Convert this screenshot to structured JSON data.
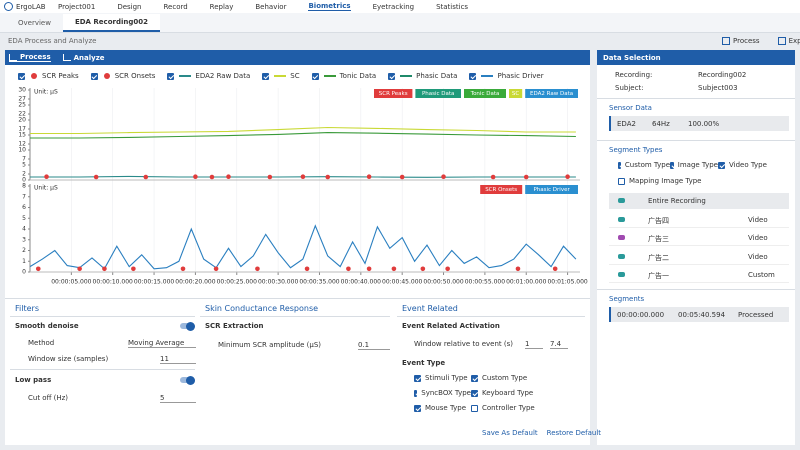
{
  "menu": {
    "app": "ErgoLAB",
    "items": [
      "Project001",
      "Design",
      "Record",
      "Replay",
      "Behavior",
      "Biometrics",
      "Eyetracking",
      "Statistics"
    ],
    "active_index": 5
  },
  "tabs": {
    "items": [
      "Overview",
      "EDA Recording002"
    ],
    "active_index": 1
  },
  "toolbar": {
    "title": "EDA Process and Analyze",
    "actions": [
      "Process",
      "Export"
    ]
  },
  "panel_tabs": {
    "items": [
      "Process",
      "Analyze"
    ],
    "active_index": 0
  },
  "legend": [
    {
      "label": "SCR Peaks",
      "color": "#e03c3c",
      "marker": "dot"
    },
    {
      "label": "SCR Onsets",
      "color": "#e03c3c",
      "marker": "dot"
    },
    {
      "label": "EDA2 Raw Data",
      "color": "#2a8a8a",
      "marker": "line"
    },
    {
      "label": "SC",
      "color": "#c9d935",
      "marker": "line"
    },
    {
      "label": "Tonic Data",
      "color": "#3a9a3a",
      "marker": "line"
    },
    {
      "label": "Phasic Data",
      "color": "#1f8a6a",
      "marker": "line"
    },
    {
      "label": "Phasic Driver",
      "color": "#2a7fc0",
      "marker": "line"
    }
  ],
  "time_axis": {
    "xlim": [
      0,
      66.5
    ],
    "xticks": [
      {
        "value": 5,
        "label": "00:00:05.000"
      },
      {
        "value": 10,
        "label": "00:00:10.000"
      },
      {
        "value": 15,
        "label": "00:00:15.000"
      },
      {
        "value": 20,
        "label": "00:00:20.000"
      },
      {
        "value": 25,
        "label": "00:00:25.000"
      },
      {
        "value": 30,
        "label": "00:00:30.000"
      },
      {
        "value": 35,
        "label": "00:00:35.000"
      },
      {
        "value": 40,
        "label": "00:00:40.000"
      },
      {
        "value": 45,
        "label": "00:00:45.000"
      },
      {
        "value": 50,
        "label": "00:00:50.000"
      },
      {
        "value": 55,
        "label": "00:00:55.000"
      },
      {
        "value": 60,
        "label": "00:01:00.000"
      },
      {
        "value": 65,
        "label": "00:01:05.000"
      }
    ]
  },
  "plots": [
    {
      "unit": "Unit: μS",
      "ylim": [
        0,
        30
      ],
      "yticks": [
        0,
        2,
        5,
        7,
        10,
        12,
        15,
        17,
        20,
        22,
        25,
        27,
        30
      ],
      "badges": [
        {
          "text": "SCR Peaks",
          "color": "#e03c3c"
        },
        {
          "text": "Phasic Data",
          "color": "#1f9a7a"
        },
        {
          "text": "Tonic Data",
          "color": "#3aaa3a"
        },
        {
          "text": "SC",
          "color": "#c9d935"
        },
        {
          "text": "EDA2 Raw Data",
          "color": "#2a8fd0"
        }
      ],
      "series": [
        {
          "type": "line",
          "color": "#c9d935",
          "x": [
            0,
            6,
            12,
            18,
            24,
            30,
            36,
            42,
            48,
            54,
            60,
            66
          ],
          "values": [
            15.5,
            15.5,
            15.8,
            16,
            16.2,
            16.8,
            17.5,
            17.2,
            16.8,
            16.5,
            16,
            16
          ]
        },
        {
          "type": "line",
          "color": "#3a9a3a",
          "x": [
            0,
            6,
            12,
            18,
            24,
            30,
            36,
            42,
            48,
            54,
            60,
            66
          ],
          "values": [
            14,
            14,
            14.2,
            14.5,
            14.8,
            15.2,
            15.8,
            15.6,
            15.3,
            15,
            14.8,
            14.5
          ]
        },
        {
          "type": "line",
          "color": "#2a8a8a",
          "x": [
            0,
            6,
            12,
            18,
            24,
            30,
            36,
            42,
            48,
            54,
            60,
            66
          ],
          "values": [
            1,
            1,
            1.2,
            1,
            1,
            1,
            1.1,
            1,
            0.9,
            1,
            1,
            1
          ]
        },
        {
          "type": "dots",
          "color": "#e03c3c",
          "x": [
            2,
            8,
            14,
            20,
            22,
            24,
            29,
            33,
            36,
            41,
            45,
            50,
            56,
            60,
            65
          ],
          "values": [
            1.1,
            1,
            1,
            1.1,
            1,
            1.1,
            1,
            1.1,
            1,
            1.1,
            1,
            1.1,
            1,
            1,
            1.1
          ]
        }
      ]
    },
    {
      "unit": "Unit: μS",
      "ylim": [
        0,
        8
      ],
      "yticks": [
        0,
        1,
        2,
        3,
        4,
        5,
        6,
        7,
        8
      ],
      "badges": [
        {
          "text": "SCR Onsets",
          "color": "#e03c3c"
        },
        {
          "text": "Phasic Driver",
          "color": "#2a8fd0"
        }
      ],
      "series": [
        {
          "type": "line",
          "color": "#2a7fc0",
          "x": [
            0,
            1.5,
            3,
            4.5,
            6,
            7.5,
            9,
            10.5,
            12,
            13.5,
            15,
            16.5,
            18,
            19.5,
            21,
            22.5,
            24,
            25.5,
            27,
            28.5,
            30,
            31.5,
            33,
            34.5,
            36,
            37.5,
            39,
            40.5,
            42,
            43.5,
            45,
            46.5,
            48,
            49.5,
            51,
            52.5,
            54,
            55.5,
            57,
            58.5,
            60,
            61.5,
            63,
            64.5,
            66
          ],
          "values": [
            0.5,
            1.2,
            2.0,
            0.6,
            0.4,
            1.3,
            0.3,
            2.4,
            0.5,
            1.6,
            0.3,
            0.4,
            1.0,
            4.0,
            1.2,
            0.4,
            2.2,
            0.5,
            1.5,
            3.5,
            1.8,
            0.4,
            1.2,
            4.3,
            1.5,
            0.5,
            2.8,
            0.8,
            4.2,
            2.2,
            3.2,
            1.0,
            2.5,
            0.6,
            2.0,
            0.8,
            1.4,
            0.4,
            0.6,
            1.2,
            2.6,
            1.6,
            0.5,
            2.4,
            1.2
          ]
        },
        {
          "type": "dots",
          "color": "#e03c3c",
          "x": [
            1,
            6,
            9,
            12.5,
            18.5,
            22.5,
            27.5,
            33.5,
            38.5,
            41,
            44,
            47.5,
            50.5,
            59,
            63.5
          ],
          "values": [
            0.3,
            0.3,
            0.3,
            0.3,
            0.3,
            0.3,
            0.3,
            0.3,
            0.3,
            0.3,
            0.3,
            0.3,
            0.3,
            0.3,
            0.3
          ]
        }
      ]
    }
  ],
  "filters": {
    "title": "Filters",
    "smooth": "Smooth denoise",
    "method_label": "Method",
    "method": "Moving Average",
    "window_label": "Window size (samples)",
    "window": 11,
    "low_pass": "Low pass",
    "cutoff_label": "Cut off (Hz)",
    "cutoff": 5
  },
  "scr": {
    "title": "Skin Conductance Response",
    "section": "SCR Extraction",
    "min_label": "Minimum SCR amplitude (μS)",
    "min": 0.1
  },
  "event": {
    "title": "Event Related",
    "section": "Event Related Activation",
    "window_label": "Window relative to event (s)",
    "window": [
      1,
      7.4
    ],
    "type_title": "Event Type",
    "types": [
      {
        "label": "Stimuli Type",
        "checked": true
      },
      {
        "label": "Custom Type",
        "checked": true
      },
      {
        "label": "SyncBOX Type",
        "checked": true
      },
      {
        "label": "Keyboard Type",
        "checked": true
      },
      {
        "label": "Mouse Type",
        "checked": true
      },
      {
        "label": "Controller Type",
        "checked": false
      }
    ],
    "buttons": [
      "Save As Default",
      "Restore Default"
    ]
  },
  "data_selection": {
    "title": "Data Selection",
    "recording_label": "Recording:",
    "recording": "Recording002",
    "subject_label": "Subject:",
    "subject": "Subject003",
    "sensor": {
      "title": "Sensor Data",
      "row": [
        "EDA2",
        "64Hz",
        "100.00%"
      ]
    },
    "segment_types": {
      "title": "Segment Types",
      "options": [
        {
          "label": "Custom Type",
          "checked": true
        },
        {
          "label": "Image Type",
          "checked": true
        },
        {
          "label": "Video Type",
          "checked": true
        },
        {
          "label": "Mapping Image Type",
          "checked": false
        }
      ],
      "rows": [
        {
          "name": "Entire Recording"
        },
        {
          "name": "广告四",
          "type": "Video"
        },
        {
          "name": "广告三",
          "type": "Video"
        },
        {
          "name": "广告二",
          "type": "Video"
        },
        {
          "name": "广告一",
          "type": "Custom"
        }
      ]
    },
    "segments": {
      "title": "Segments",
      "row": [
        "00:00:00.000",
        "00:05:40.594",
        "Processed"
      ]
    }
  }
}
